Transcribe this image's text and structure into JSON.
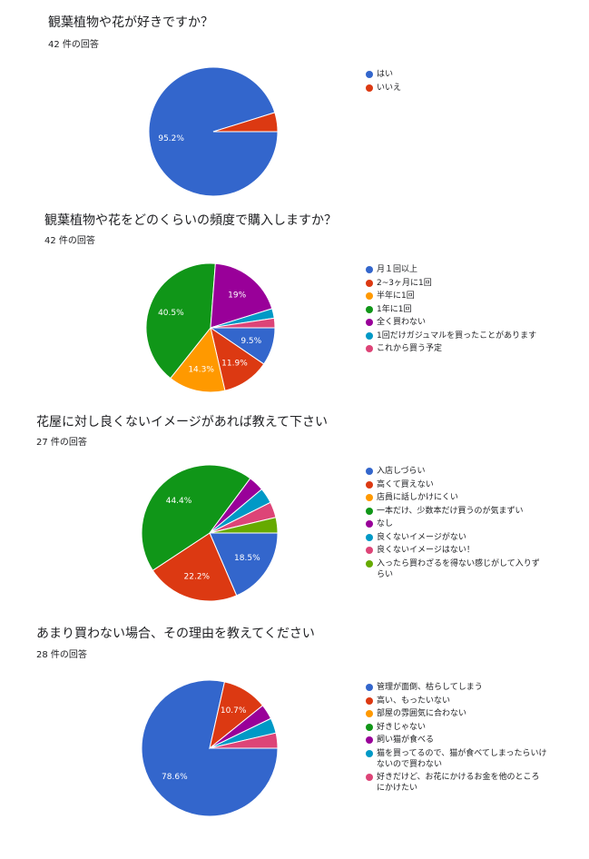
{
  "chart_data": [
    {
      "type": "pie",
      "title": "観葉植物や花が好きですか？",
      "subtitle": "42 件の回答",
      "categories": [
        "はい",
        "いいえ"
      ],
      "values": [
        95.2,
        4.8
      ],
      "labels": [
        "95.2%",
        ""
      ],
      "colors": [
        "#3366cc",
        "#dc3912"
      ],
      "legend": "right"
    },
    {
      "type": "pie",
      "title": "観葉植物や花をどのくらいの頻度で購入しますか？",
      "subtitle": "42 件の回答",
      "categories": [
        "月１回以上",
        "2~3ヶ月に1回",
        "半年に1回",
        "1年に1回",
        "全く買わない",
        "1回だけガジュマルを買ったことがあります",
        "これから買う予定"
      ],
      "values": [
        9.5,
        11.9,
        14.3,
        40.5,
        19.0,
        2.4,
        2.4
      ],
      "labels": [
        "9.5%",
        "11.9%",
        "14.3%",
        "40.5%",
        "19%",
        "",
        ""
      ],
      "colors": [
        "#3366cc",
        "#dc3912",
        "#ff9900",
        "#109618",
        "#990099",
        "#0099c6",
        "#dd4477"
      ],
      "legend": "right"
    },
    {
      "type": "pie",
      "title": "花屋に対し良くないイメージがあれば教えて下さい",
      "subtitle": "27 件の回答",
      "categories": [
        "入店しづらい",
        "高くて買えない",
        "店員に話しかけにくい",
        "一本だけ、少数本だけ買うのが気まずい",
        "なし",
        "良くないイメージがない",
        "良くないイメージはない！",
        "入ったら買わざるを得ない感じがして入りずらい"
      ],
      "values": [
        18.5,
        22.2,
        0,
        44.4,
        3.7,
        3.7,
        3.7,
        3.7
      ],
      "labels": [
        "18.5%",
        "22.2%",
        "",
        "44.4%",
        "",
        "",
        "",
        ""
      ],
      "colors": [
        "#3366cc",
        "#dc3912",
        "#ff9900",
        "#109618",
        "#990099",
        "#0099c6",
        "#dd4477",
        "#66aa00"
      ],
      "legend": "right"
    },
    {
      "type": "pie",
      "title": "あまり買わない場合、その理由を教えてください",
      "subtitle": "28 件の回答",
      "categories": [
        "管理が面倒、枯らしてしまう",
        "高い、もったいない",
        "部屋の雰囲気に合わない",
        "好きじゃない",
        "飼い猫が食べる",
        "猫を買ってるので、猫が食べてしまったらいけないので買わない",
        "好きだけど、お花にかけるお金を他のところにかけたい"
      ],
      "values": [
        78.6,
        10.7,
        0,
        0,
        3.6,
        3.6,
        3.6
      ],
      "labels": [
        "78.6%",
        "10.7%",
        "",
        "",
        "",
        "",
        ""
      ],
      "colors": [
        "#3366cc",
        "#dc3912",
        "#ff9900",
        "#109618",
        "#990099",
        "#0099c6",
        "#dd4477"
      ],
      "legend": "right"
    }
  ]
}
